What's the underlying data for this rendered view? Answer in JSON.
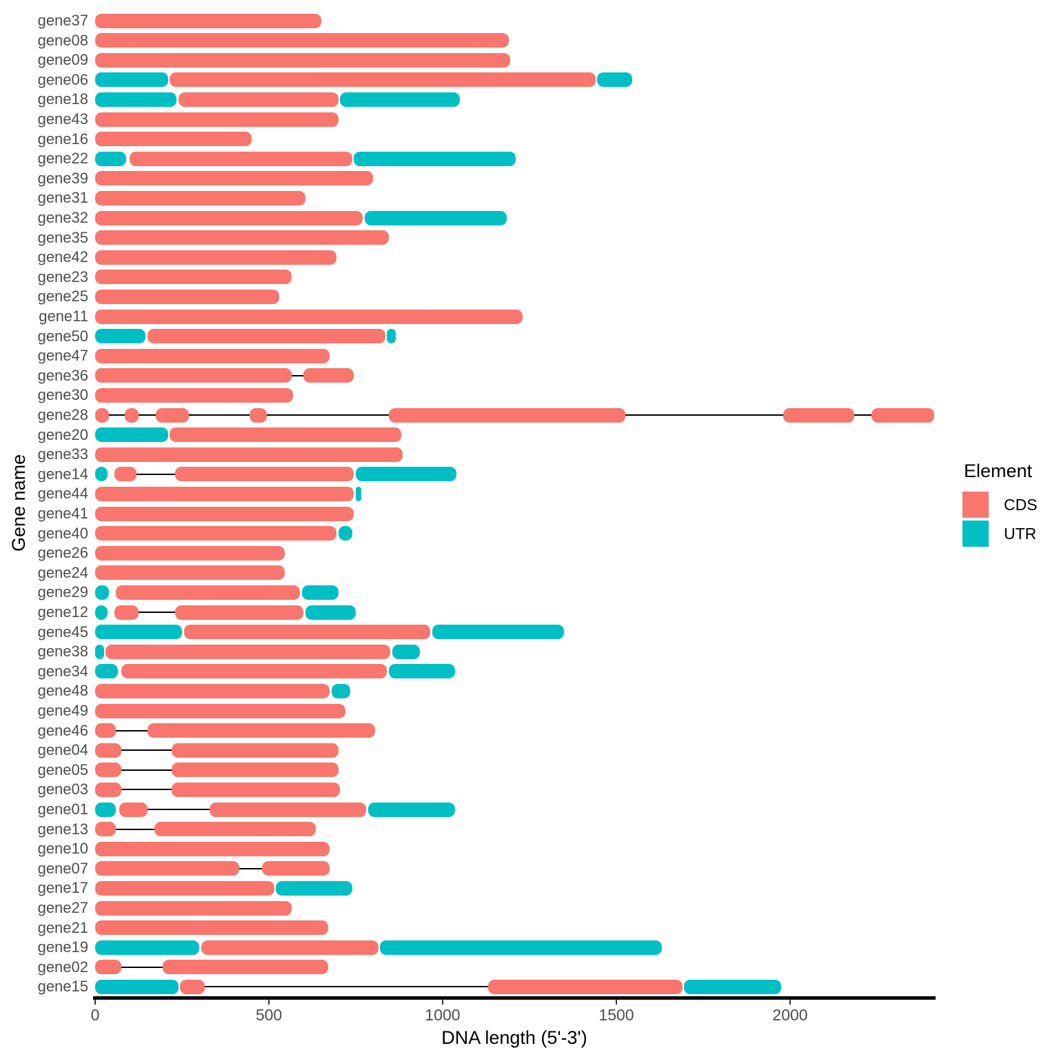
{
  "colors": {
    "cds": "#F8766D",
    "utr": "#00BFC4",
    "axis_text": "#4D4D4D",
    "axis_line": "#000000"
  },
  "legend": {
    "title": "Element",
    "entries": [
      {
        "label": "CDS",
        "color": "#F8766D"
      },
      {
        "label": "UTR",
        "color": "#00BFC4"
      }
    ]
  },
  "chart_data": {
    "type": "bar",
    "subtype": "gene-structure-intervals",
    "title": "",
    "xlabel": "DNA length (5'-3')",
    "ylabel": "Gene name",
    "xlim": [
      0,
      2420
    ],
    "x_ticks": [
      0,
      500,
      1000,
      1500,
      2000
    ],
    "x_tick_labels": [
      "0",
      "500",
      "1000",
      "1500",
      "2000"
    ],
    "grid": false,
    "legend_position": "right",
    "elements": [
      "CDS",
      "UTR"
    ],
    "genes": [
      {
        "name": "gene37",
        "segments": [
          {
            "element": "CDS",
            "start": 0,
            "end": 650
          }
        ]
      },
      {
        "name": "gene08",
        "segments": [
          {
            "element": "CDS",
            "start": 0,
            "end": 1190
          }
        ]
      },
      {
        "name": "gene09",
        "segments": [
          {
            "element": "CDS",
            "start": 0,
            "end": 1195
          }
        ]
      },
      {
        "name": "gene06",
        "segments": [
          {
            "element": "UTR",
            "start": 0,
            "end": 210
          },
          {
            "element": "CDS",
            "start": 215,
            "end": 1440
          },
          {
            "element": "UTR",
            "start": 1445,
            "end": 1545
          }
        ]
      },
      {
        "name": "gene18",
        "segments": [
          {
            "element": "UTR",
            "start": 0,
            "end": 235
          },
          {
            "element": "CDS",
            "start": 240,
            "end": 700
          },
          {
            "element": "UTR",
            "start": 705,
            "end": 1050
          }
        ]
      },
      {
        "name": "gene43",
        "segments": [
          {
            "element": "CDS",
            "start": 0,
            "end": 700
          }
        ]
      },
      {
        "name": "gene16",
        "segments": [
          {
            "element": "CDS",
            "start": 0,
            "end": 450
          }
        ]
      },
      {
        "name": "gene22",
        "segments": [
          {
            "element": "UTR",
            "start": 0,
            "end": 90
          },
          {
            "element": "CDS",
            "start": 100,
            "end": 740
          },
          {
            "element": "UTR",
            "start": 745,
            "end": 1210
          }
        ]
      },
      {
        "name": "gene39",
        "segments": [
          {
            "element": "CDS",
            "start": 0,
            "end": 800
          }
        ]
      },
      {
        "name": "gene31",
        "segments": [
          {
            "element": "CDS",
            "start": 0,
            "end": 605
          }
        ]
      },
      {
        "name": "gene32",
        "segments": [
          {
            "element": "CDS",
            "start": 0,
            "end": 770
          },
          {
            "element": "UTR",
            "start": 775,
            "end": 1185
          }
        ]
      },
      {
        "name": "gene35",
        "segments": [
          {
            "element": "CDS",
            "start": 0,
            "end": 845
          }
        ]
      },
      {
        "name": "gene42",
        "segments": [
          {
            "element": "CDS",
            "start": 0,
            "end": 695
          }
        ]
      },
      {
        "name": "gene23",
        "segments": [
          {
            "element": "CDS",
            "start": 0,
            "end": 565
          }
        ]
      },
      {
        "name": "gene25",
        "segments": [
          {
            "element": "CDS",
            "start": 0,
            "end": 530
          }
        ]
      },
      {
        "name": "gene11",
        "segments": [
          {
            "element": "CDS",
            "start": 0,
            "end": 1230
          }
        ]
      },
      {
        "name": "gene50",
        "segments": [
          {
            "element": "UTR",
            "start": 0,
            "end": 145
          },
          {
            "element": "CDS",
            "start": 150,
            "end": 835
          },
          {
            "element": "UTR",
            "start": 840,
            "end": 865
          }
        ]
      },
      {
        "name": "gene47",
        "segments": [
          {
            "element": "CDS",
            "start": 0,
            "end": 675
          }
        ]
      },
      {
        "name": "gene36",
        "segments": [
          {
            "element": "CDS",
            "start": 0,
            "end": 565
          },
          {
            "element": "intron",
            "start": 565,
            "end": 600
          },
          {
            "element": "CDS",
            "start": 600,
            "end": 745
          }
        ]
      },
      {
        "name": "gene30",
        "segments": [
          {
            "element": "CDS",
            "start": 0,
            "end": 570
          }
        ]
      },
      {
        "name": "gene28",
        "segments": [
          {
            "element": "CDS",
            "start": 0,
            "end": 40
          },
          {
            "element": "intron",
            "start": 40,
            "end": 85
          },
          {
            "element": "CDS",
            "start": 85,
            "end": 125
          },
          {
            "element": "intron",
            "start": 125,
            "end": 175
          },
          {
            "element": "CDS",
            "start": 175,
            "end": 270
          },
          {
            "element": "intron",
            "start": 270,
            "end": 445
          },
          {
            "element": "CDS",
            "start": 445,
            "end": 495
          },
          {
            "element": "intron",
            "start": 495,
            "end": 845
          },
          {
            "element": "CDS",
            "start": 845,
            "end": 1525
          },
          {
            "element": "intron",
            "start": 1525,
            "end": 1980
          },
          {
            "element": "CDS",
            "start": 1980,
            "end": 2185
          },
          {
            "element": "intron",
            "start": 2185,
            "end": 2235
          },
          {
            "element": "CDS",
            "start": 2235,
            "end": 2415
          }
        ]
      },
      {
        "name": "gene20",
        "segments": [
          {
            "element": "UTR",
            "start": 0,
            "end": 210
          },
          {
            "element": "CDS",
            "start": 215,
            "end": 880
          }
        ]
      },
      {
        "name": "gene33",
        "segments": [
          {
            "element": "CDS",
            "start": 0,
            "end": 885
          }
        ]
      },
      {
        "name": "gene14",
        "segments": [
          {
            "element": "UTR",
            "start": 0,
            "end": 35
          },
          {
            "element": "CDS",
            "start": 55,
            "end": 120
          },
          {
            "element": "intron",
            "start": 120,
            "end": 230
          },
          {
            "element": "CDS",
            "start": 230,
            "end": 745
          },
          {
            "element": "UTR",
            "start": 750,
            "end": 1040
          }
        ]
      },
      {
        "name": "gene44",
        "segments": [
          {
            "element": "CDS",
            "start": 0,
            "end": 745
          },
          {
            "element": "UTR",
            "start": 750,
            "end": 765
          }
        ]
      },
      {
        "name": "gene41",
        "segments": [
          {
            "element": "CDS",
            "start": 0,
            "end": 745
          }
        ]
      },
      {
        "name": "gene40",
        "segments": [
          {
            "element": "CDS",
            "start": 0,
            "end": 695
          },
          {
            "element": "UTR",
            "start": 700,
            "end": 740
          }
        ]
      },
      {
        "name": "gene26",
        "segments": [
          {
            "element": "CDS",
            "start": 0,
            "end": 545
          }
        ]
      },
      {
        "name": "gene24",
        "segments": [
          {
            "element": "CDS",
            "start": 0,
            "end": 545
          }
        ]
      },
      {
        "name": "gene29",
        "segments": [
          {
            "element": "UTR",
            "start": 0,
            "end": 40
          },
          {
            "element": "CDS",
            "start": 60,
            "end": 590
          },
          {
            "element": "UTR",
            "start": 595,
            "end": 700
          }
        ]
      },
      {
        "name": "gene12",
        "segments": [
          {
            "element": "UTR",
            "start": 0,
            "end": 35
          },
          {
            "element": "CDS",
            "start": 55,
            "end": 125
          },
          {
            "element": "intron",
            "start": 125,
            "end": 230
          },
          {
            "element": "CDS",
            "start": 230,
            "end": 600
          },
          {
            "element": "UTR",
            "start": 605,
            "end": 750
          }
        ]
      },
      {
        "name": "gene45",
        "segments": [
          {
            "element": "UTR",
            "start": 0,
            "end": 250
          },
          {
            "element": "CDS",
            "start": 255,
            "end": 965
          },
          {
            "element": "UTR",
            "start": 970,
            "end": 1350
          }
        ]
      },
      {
        "name": "gene38",
        "segments": [
          {
            "element": "UTR",
            "start": 0,
            "end": 25
          },
          {
            "element": "CDS",
            "start": 30,
            "end": 850
          },
          {
            "element": "UTR",
            "start": 855,
            "end": 935
          }
        ]
      },
      {
        "name": "gene34",
        "segments": [
          {
            "element": "UTR",
            "start": 0,
            "end": 65
          },
          {
            "element": "CDS",
            "start": 75,
            "end": 840
          },
          {
            "element": "UTR",
            "start": 845,
            "end": 1035
          }
        ]
      },
      {
        "name": "gene48",
        "segments": [
          {
            "element": "CDS",
            "start": 0,
            "end": 675
          },
          {
            "element": "UTR",
            "start": 680,
            "end": 735
          }
        ]
      },
      {
        "name": "gene49",
        "segments": [
          {
            "element": "CDS",
            "start": 0,
            "end": 720
          }
        ]
      },
      {
        "name": "gene46",
        "segments": [
          {
            "element": "CDS",
            "start": 0,
            "end": 60
          },
          {
            "element": "intron",
            "start": 60,
            "end": 150
          },
          {
            "element": "CDS",
            "start": 150,
            "end": 805
          }
        ]
      },
      {
        "name": "gene04",
        "segments": [
          {
            "element": "CDS",
            "start": 0,
            "end": 75
          },
          {
            "element": "intron",
            "start": 75,
            "end": 220
          },
          {
            "element": "CDS",
            "start": 220,
            "end": 700
          }
        ]
      },
      {
        "name": "gene05",
        "segments": [
          {
            "element": "CDS",
            "start": 0,
            "end": 75
          },
          {
            "element": "intron",
            "start": 75,
            "end": 220
          },
          {
            "element": "CDS",
            "start": 220,
            "end": 700
          }
        ]
      },
      {
        "name": "gene03",
        "segments": [
          {
            "element": "CDS",
            "start": 0,
            "end": 75
          },
          {
            "element": "intron",
            "start": 75,
            "end": 220
          },
          {
            "element": "CDS",
            "start": 220,
            "end": 705
          }
        ]
      },
      {
        "name": "gene01",
        "segments": [
          {
            "element": "UTR",
            "start": 0,
            "end": 60
          },
          {
            "element": "CDS",
            "start": 70,
            "end": 150
          },
          {
            "element": "intron",
            "start": 150,
            "end": 330
          },
          {
            "element": "CDS",
            "start": 330,
            "end": 780
          },
          {
            "element": "UTR",
            "start": 785,
            "end": 1035
          }
        ]
      },
      {
        "name": "gene13",
        "segments": [
          {
            "element": "CDS",
            "start": 0,
            "end": 60
          },
          {
            "element": "intron",
            "start": 60,
            "end": 170
          },
          {
            "element": "CDS",
            "start": 170,
            "end": 635
          }
        ]
      },
      {
        "name": "gene10",
        "segments": [
          {
            "element": "CDS",
            "start": 0,
            "end": 675
          }
        ]
      },
      {
        "name": "gene07",
        "segments": [
          {
            "element": "CDS",
            "start": 0,
            "end": 415
          },
          {
            "element": "intron",
            "start": 415,
            "end": 480
          },
          {
            "element": "CDS",
            "start": 480,
            "end": 675
          }
        ]
      },
      {
        "name": "gene17",
        "segments": [
          {
            "element": "CDS",
            "start": 0,
            "end": 515
          },
          {
            "element": "UTR",
            "start": 520,
            "end": 740
          }
        ]
      },
      {
        "name": "gene27",
        "segments": [
          {
            "element": "CDS",
            "start": 0,
            "end": 565
          }
        ]
      },
      {
        "name": "gene21",
        "segments": [
          {
            "element": "CDS",
            "start": 0,
            "end": 670
          }
        ]
      },
      {
        "name": "gene19",
        "segments": [
          {
            "element": "UTR",
            "start": 0,
            "end": 300
          },
          {
            "element": "CDS",
            "start": 305,
            "end": 815
          },
          {
            "element": "UTR",
            "start": 820,
            "end": 1630
          }
        ]
      },
      {
        "name": "gene02",
        "segments": [
          {
            "element": "CDS",
            "start": 0,
            "end": 75
          },
          {
            "element": "intron",
            "start": 75,
            "end": 195
          },
          {
            "element": "CDS",
            "start": 195,
            "end": 670
          }
        ]
      },
      {
        "name": "gene15",
        "segments": [
          {
            "element": "UTR",
            "start": 0,
            "end": 240
          },
          {
            "element": "CDS",
            "start": 245,
            "end": 315
          },
          {
            "element": "intron",
            "start": 315,
            "end": 1130
          },
          {
            "element": "CDS",
            "start": 1130,
            "end": 1690
          },
          {
            "element": "UTR",
            "start": 1695,
            "end": 1975
          }
        ]
      }
    ]
  }
}
